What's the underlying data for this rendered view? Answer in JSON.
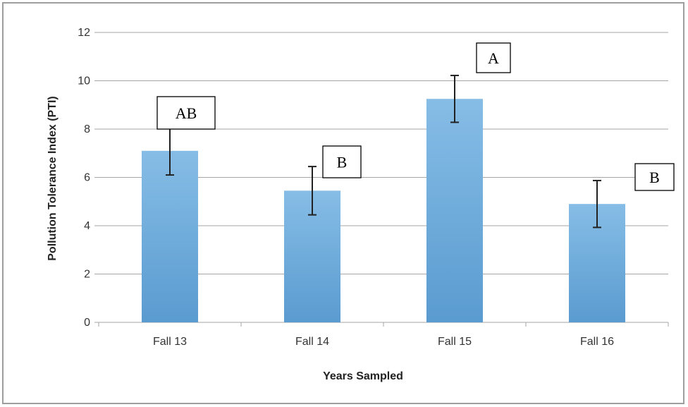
{
  "chart_data": {
    "type": "bar",
    "title": "",
    "xlabel": "Years Sampled",
    "ylabel": "Pollution Tolerance Index (PTI)",
    "ylim": [
      0,
      12
    ],
    "yticks": [
      0,
      2,
      4,
      6,
      8,
      10,
      12
    ],
    "grid": true,
    "legend": "none",
    "categories": [
      "Fall 13",
      "Fall 14",
      "Fall 15",
      "Fall 16"
    ],
    "values": [
      7.1,
      5.45,
      9.25,
      4.9
    ],
    "error": [
      1.0,
      1.0,
      0.97,
      0.97
    ],
    "annotations": [
      "AB",
      "B",
      "A",
      "B"
    ],
    "colors": {
      "bar_top": "#86bde6",
      "bar_bottom": "#5a9bd0",
      "grid": "#a6a6a6",
      "error_bar": "#222222"
    }
  }
}
